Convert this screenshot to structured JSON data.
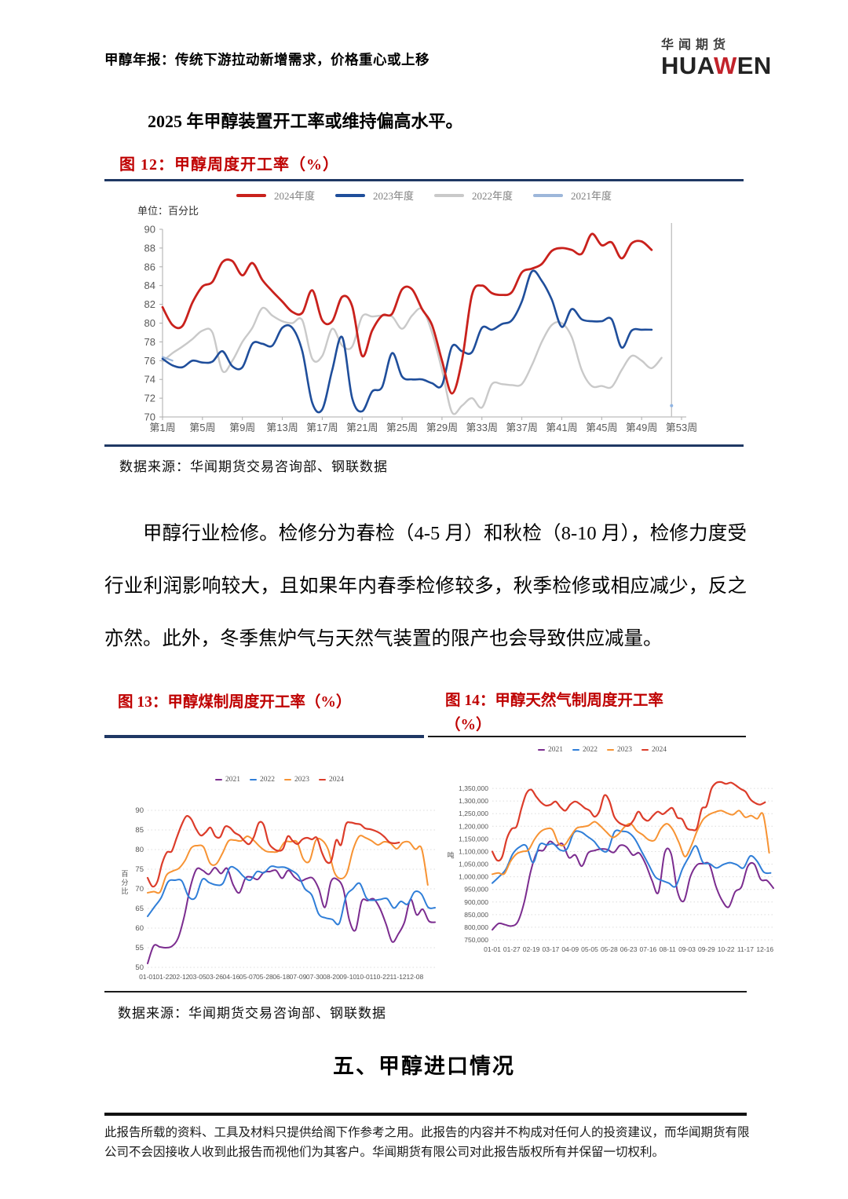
{
  "header": {
    "report_title": "甲醇年报：传统下游拉动新增需求，价格重心或上移",
    "logo": {
      "cn": "华闻期货",
      "en_pre": "HUA",
      "en_w": "W",
      "en_post": "EN"
    }
  },
  "intro": {
    "text": "2025 年甲醇装置开工率或维持偏高水平。"
  },
  "figure12": {
    "title": "图 12：甲醇周度开工率（%）",
    "unit_label": "单位：百分比",
    "source": "数据来源：华闻期货交易咨询部、钢联数据"
  },
  "paragraph": {
    "text": "甲醇行业检修。检修分为春检（4-5 月）和秋检（8-10 月），检修力度受行业利润影响较大，且如果年内春季检修较多，秋季检修或相应减少，反之亦然。此外，冬季焦炉气与天然气装置的限产也会导致供应减量。"
  },
  "figure13": {
    "title": "图 13：甲醇煤制周度开工率（%）"
  },
  "figure14": {
    "title_line1": "图 14：甲醇天然气制周度开工率",
    "title_line2": "（%）"
  },
  "figures_source": "数据来源：华闻期货交易咨询部、钢联数据",
  "section": {
    "heading": "五、甲醇进口情况"
  },
  "footer": {
    "disclaimer": "此报告所载的资料、工具及材料只提供给阁下作参考之用。此报告的内容并不构成对任何人的投资建议，而华闻期货有限公司不会因接收人收到此报告而视他们为其客户。华闻期货有限公司对此报告版权所有并保留一切权利。"
  },
  "colors": {
    "accent_red_title": "#bf0000",
    "rule_navy": "#1f3864",
    "logo_red": "#c2232b"
  },
  "chart_data": [
    {
      "id": "fig12",
      "type": "line",
      "title": "甲醇周度开工率（%）",
      "ylabel": "百分比",
      "ylim": [
        70,
        90
      ],
      "ytick_step": 2,
      "x_mode": "weeks",
      "weeks_total": 53,
      "x_tick_labels": [
        "第1周",
        "第5周",
        "第9周",
        "第13周",
        "第17周",
        "第21周",
        "第25周",
        "第29周",
        "第33周",
        "第37周",
        "第41周",
        "第45周",
        "第49周",
        "第53周"
      ],
      "grid": false,
      "legend": [
        {
          "label": "2024年度",
          "color": "#c9211c"
        },
        {
          "label": "2023年度",
          "color": "#1f4e9b"
        },
        {
          "label": "2022年度",
          "color": "#c9c9c9"
        },
        {
          "label": "2021年度",
          "color": "#9db7da"
        }
      ],
      "marker_line_week": 52,
      "marker_dot": {
        "week": 52,
        "value": 71.2,
        "color": "#8fb4e3"
      },
      "series": [
        {
          "name": "2022年度",
          "color": "#c9c9c9",
          "width": 2.4,
          "start_week": 1,
          "values": [
            75.9,
            76.8,
            77.5,
            78.3,
            79.2,
            79.0,
            74.9,
            76.0,
            78.0,
            79.5,
            81.6,
            80.8,
            80.2,
            80.0,
            80.3,
            76.2,
            76.5,
            79.4,
            77.6,
            77.5,
            80.7,
            80.7,
            80.8,
            80.7,
            79.4,
            80.8,
            81.5,
            79.0,
            75.0,
            70.5,
            71.2,
            72.0,
            71.0,
            73.5,
            73.5,
            73.4,
            73.5,
            75.5,
            78.0,
            79.8,
            80.0,
            78.5,
            75.0,
            73.3,
            73.3,
            73.2,
            75.0,
            76.5,
            76.0,
            75.2,
            76.3
          ]
        },
        {
          "name": "2021年度",
          "color": "#9db7da",
          "width": 2.2,
          "start_week": 1,
          "values": [
            76.4,
            76.0
          ]
        },
        {
          "name": "2023年度",
          "color": "#1f4e9b",
          "width": 2.6,
          "start_week": 1,
          "values": [
            76.2,
            75.5,
            75.3,
            76.0,
            75.8,
            75.9,
            77.0,
            75.4,
            75.3,
            77.8,
            77.8,
            77.6,
            79.5,
            79.5,
            77.0,
            71.5,
            70.8,
            75.0,
            78.5,
            72.0,
            70.6,
            72.7,
            73.2,
            76.8,
            74.3,
            74.0,
            74.0,
            73.6,
            73.4,
            77.5,
            77.0,
            76.9,
            79.5,
            79.3,
            79.9,
            80.3,
            82.3,
            85.5,
            84.5,
            82.5,
            79.6,
            81.5,
            80.4,
            80.2,
            80.2,
            80.4,
            77.4,
            79.2,
            79.3,
            79.3
          ]
        },
        {
          "name": "2024年度",
          "color": "#c9211c",
          "width": 2.8,
          "start_week": 1,
          "values": [
            81.7,
            79.8,
            79.7,
            82.2,
            83.9,
            84.4,
            86.5,
            86.6,
            85.1,
            86.4,
            84.6,
            83.4,
            82.3,
            81.2,
            81.1,
            83.5,
            80.3,
            80.2,
            82.8,
            81.8,
            76.5,
            79.2,
            80.8,
            81.0,
            83.6,
            83.6,
            81.5,
            79.8,
            76.0,
            72.5,
            76.0,
            83.0,
            84.0,
            83.2,
            83.0,
            83.3,
            85.4,
            85.8,
            86.3,
            87.7,
            88.0,
            87.8,
            87.4,
            89.5,
            88.3,
            88.6,
            86.9,
            88.5,
            88.7,
            87.8
          ]
        }
      ]
    },
    {
      "id": "fig13",
      "type": "line",
      "title": "甲醇煤制周度开工率（%）",
      "ylabel": "百分比",
      "ylim": [
        50,
        92
      ],
      "yticks": [
        50,
        55,
        60,
        65,
        70,
        75,
        80,
        85,
        90
      ],
      "x_labels": [
        "01-01",
        "01-22",
        "02-12",
        "03-05",
        "03-26",
        "04-16",
        "05-07",
        "05-28",
        "06-18",
        "07-09",
        "07-30",
        "08-20",
        "09-10",
        "10-01",
        "10-22",
        "11-12",
        "12-08"
      ],
      "x_label_span": 0.93,
      "grid": true,
      "legend": [
        {
          "label": "2021",
          "color": "#7b2c8f"
        },
        {
          "label": "2022",
          "color": "#2f7ed8"
        },
        {
          "label": "2023",
          "color": "#f79333"
        },
        {
          "label": "2024",
          "color": "#dc3c2a"
        }
      ],
      "series": [
        {
          "name": "2021",
          "color": "#7b2c8f",
          "width": 2,
          "x_span": 1.0,
          "values": [
            51.0,
            55.5,
            55.2,
            55.0,
            55.4,
            57.5,
            63.0,
            70.5,
            75.0,
            74.7,
            73.7,
            75.4,
            73.9,
            75.2,
            71.0,
            69.0,
            72.7,
            73.0,
            72.4,
            74.2,
            74.4,
            74.7,
            72.7,
            74.7,
            73.0,
            72.0,
            72.6,
            72.7,
            70.0,
            65.3,
            71.9,
            72.4,
            70.0,
            62.0,
            59.5,
            66.8,
            67.0,
            67.4,
            65.0,
            61.0,
            56.5,
            58.5,
            61.5,
            67.3,
            63.4,
            64.8,
            61.8,
            61.5
          ]
        },
        {
          "name": "2022",
          "color": "#2f7ed8",
          "width": 2,
          "x_span": 1.0,
          "values": [
            63.0,
            65.4,
            67.8,
            71.8,
            72.2,
            72.0,
            68.0,
            67.8,
            72.4,
            71.6,
            71.0,
            71.4,
            75.4,
            75.0,
            73.2,
            72.2,
            74.4,
            74.1,
            75.7,
            75.5,
            75.5,
            74.7,
            73.4,
            70.0,
            68.4,
            63.6,
            62.6,
            62.2,
            61.2,
            68.0,
            70.0,
            71.4,
            67.6,
            67.1,
            67.3,
            67.5,
            65.1,
            66.8,
            66.1,
            69.2,
            68.7,
            65.3,
            65.2
          ]
        },
        {
          "name": "2023",
          "color": "#f79333",
          "width": 2,
          "x_span": 0.975,
          "values": [
            69.0,
            69.3,
            69.2,
            73.4,
            74.5,
            75.2,
            77.2,
            80.4,
            81.0,
            80.6,
            76.6,
            76.3,
            79.0,
            82.2,
            82.4,
            82.2,
            83.4,
            82.4,
            80.8,
            79.6,
            79.4,
            79.6,
            81.9,
            82.0,
            81.9,
            77.6,
            77.1,
            82.3,
            82.4,
            80.0,
            74.2,
            72.6,
            74.0,
            80.0,
            83.4,
            83.0,
            82.2,
            81.2,
            82.0,
            81.6,
            80.2,
            81.8,
            81.9,
            80.1,
            80.3,
            71.0
          ]
        },
        {
          "name": "2024",
          "color": "#dc3c2a",
          "width": 2.2,
          "x_span": 0.875,
          "values": [
            72.8,
            70.6,
            71.8,
            76.5,
            79.3,
            79.6,
            83.0,
            86.2,
            88.5,
            87.8,
            85.3,
            83.6,
            84.4,
            85.6,
            83.4,
            83.2,
            85.8,
            85.6,
            84.3,
            83.6,
            82.2,
            81.4,
            83.3,
            86.8,
            86.3,
            81.8,
            80.3,
            79.7,
            80.2,
            83.4,
            82.2,
            81.4,
            82.6,
            83.0,
            82.6,
            83.0,
            79.4,
            76.9,
            77.2,
            82.4,
            81.2,
            86.4,
            86.9,
            86.6,
            86.4,
            85.4,
            85.2,
            84.8,
            84.2,
            83.2,
            81.9,
            81.6,
            81.8
          ]
        }
      ]
    },
    {
      "id": "fig14",
      "type": "line",
      "title": "甲醇天然气制周度开工率（%）",
      "ylabel": "吨",
      "ylim": [
        750000,
        1400000
      ],
      "yticks": [
        750000,
        800000,
        850000,
        900000,
        950000,
        1000000,
        1050000,
        1100000,
        1150000,
        1200000,
        1250000,
        1300000,
        1350000
      ],
      "y_format": "comma",
      "x_labels": [
        "01-01",
        "01-27",
        "02-19",
        "03-17",
        "04-09",
        "05-05",
        "05-28",
        "06-23",
        "07-16",
        "08-11",
        "09-03",
        "09-29",
        "10-22",
        "11-17",
        "12-16"
      ],
      "x_label_span": 0.97,
      "grid": true,
      "legend": [
        {
          "label": "2021",
          "color": "#7b2c8f"
        },
        {
          "label": "2022",
          "color": "#2f7ed8"
        },
        {
          "label": "2023",
          "color": "#f79333"
        },
        {
          "label": "2024",
          "color": "#dc3c2a"
        }
      ],
      "series": [
        {
          "name": "2021",
          "color": "#7b2c8f",
          "width": 2,
          "x_span": 1.0,
          "values": [
            790000,
            815000,
            810000,
            805000,
            822000,
            900000,
            1020000,
            1098000,
            1105000,
            1140000,
            1124000,
            1130000,
            1076000,
            1086000,
            1042000,
            1094000,
            1104000,
            1110000,
            1108000,
            1096000,
            1124000,
            1118000,
            1086000,
            1094000,
            1050000,
            985000,
            938000,
            1096000,
            1090000,
            940000,
            905000,
            1000000,
            1046000,
            1052000,
            1048000,
            962000,
            905000,
            880000,
            940000,
            960000,
            1042000,
            1050000,
            990000,
            985000,
            955000
          ]
        },
        {
          "name": "2022",
          "color": "#2f7ed8",
          "width": 2,
          "x_span": 0.99,
          "values": [
            975000,
            1000000,
            1030000,
            1090000,
            1118000,
            1122000,
            1056000,
            1128000,
            1126000,
            1130000,
            1106000,
            1110000,
            1174000,
            1178000,
            1160000,
            1140000,
            1108000,
            1104000,
            1178000,
            1180000,
            1176000,
            1150000,
            1100000,
            1050000,
            1000000,
            985000,
            975000,
            962000,
            1030000,
            1080000,
            1122000,
            1058000,
            1052000,
            1035000,
            1048000,
            1056000,
            1048000,
            1035000,
            1082000,
            1062000,
            1018000,
            1015000
          ]
        },
        {
          "name": "2023",
          "color": "#f79333",
          "width": 2,
          "x_span": 0.985,
          "values": [
            1010000,
            1015000,
            1012000,
            1060000,
            1090000,
            1100000,
            1106000,
            1148000,
            1178000,
            1190000,
            1186000,
            1132000,
            1126000,
            1160000,
            1192000,
            1198000,
            1203000,
            1218000,
            1200000,
            1176000,
            1156000,
            1170000,
            1198000,
            1210000,
            1182000,
            1166000,
            1146000,
            1146000,
            1190000,
            1210000,
            1186000,
            1136000,
            1080000,
            1120000,
            1180000,
            1226000,
            1246000,
            1256000,
            1262000,
            1252000,
            1246000,
            1262000,
            1236000,
            1242000,
            1230000,
            1246000,
            1095000
          ]
        },
        {
          "name": "2024",
          "color": "#dc3c2a",
          "width": 2.2,
          "x_span": 0.97,
          "values": [
            1100000,
            1065000,
            1078000,
            1152000,
            1190000,
            1200000,
            1272000,
            1330000,
            1345000,
            1318000,
            1295000,
            1282000,
            1286000,
            1298000,
            1276000,
            1262000,
            1286000,
            1298000,
            1288000,
            1272000,
            1262000,
            1238000,
            1260000,
            1322000,
            1302000,
            1240000,
            1215000,
            1205000,
            1202000,
            1224000,
            1258000,
            1232000,
            1222000,
            1242000,
            1258000,
            1248000,
            1262000,
            1272000,
            1235000,
            1228000,
            1192000,
            1186000,
            1192000,
            1268000,
            1280000,
            1348000,
            1372000,
            1375000,
            1368000,
            1373000,
            1362000,
            1348000,
            1337000,
            1307000,
            1292000,
            1286000,
            1295000
          ]
        }
      ]
    }
  ]
}
